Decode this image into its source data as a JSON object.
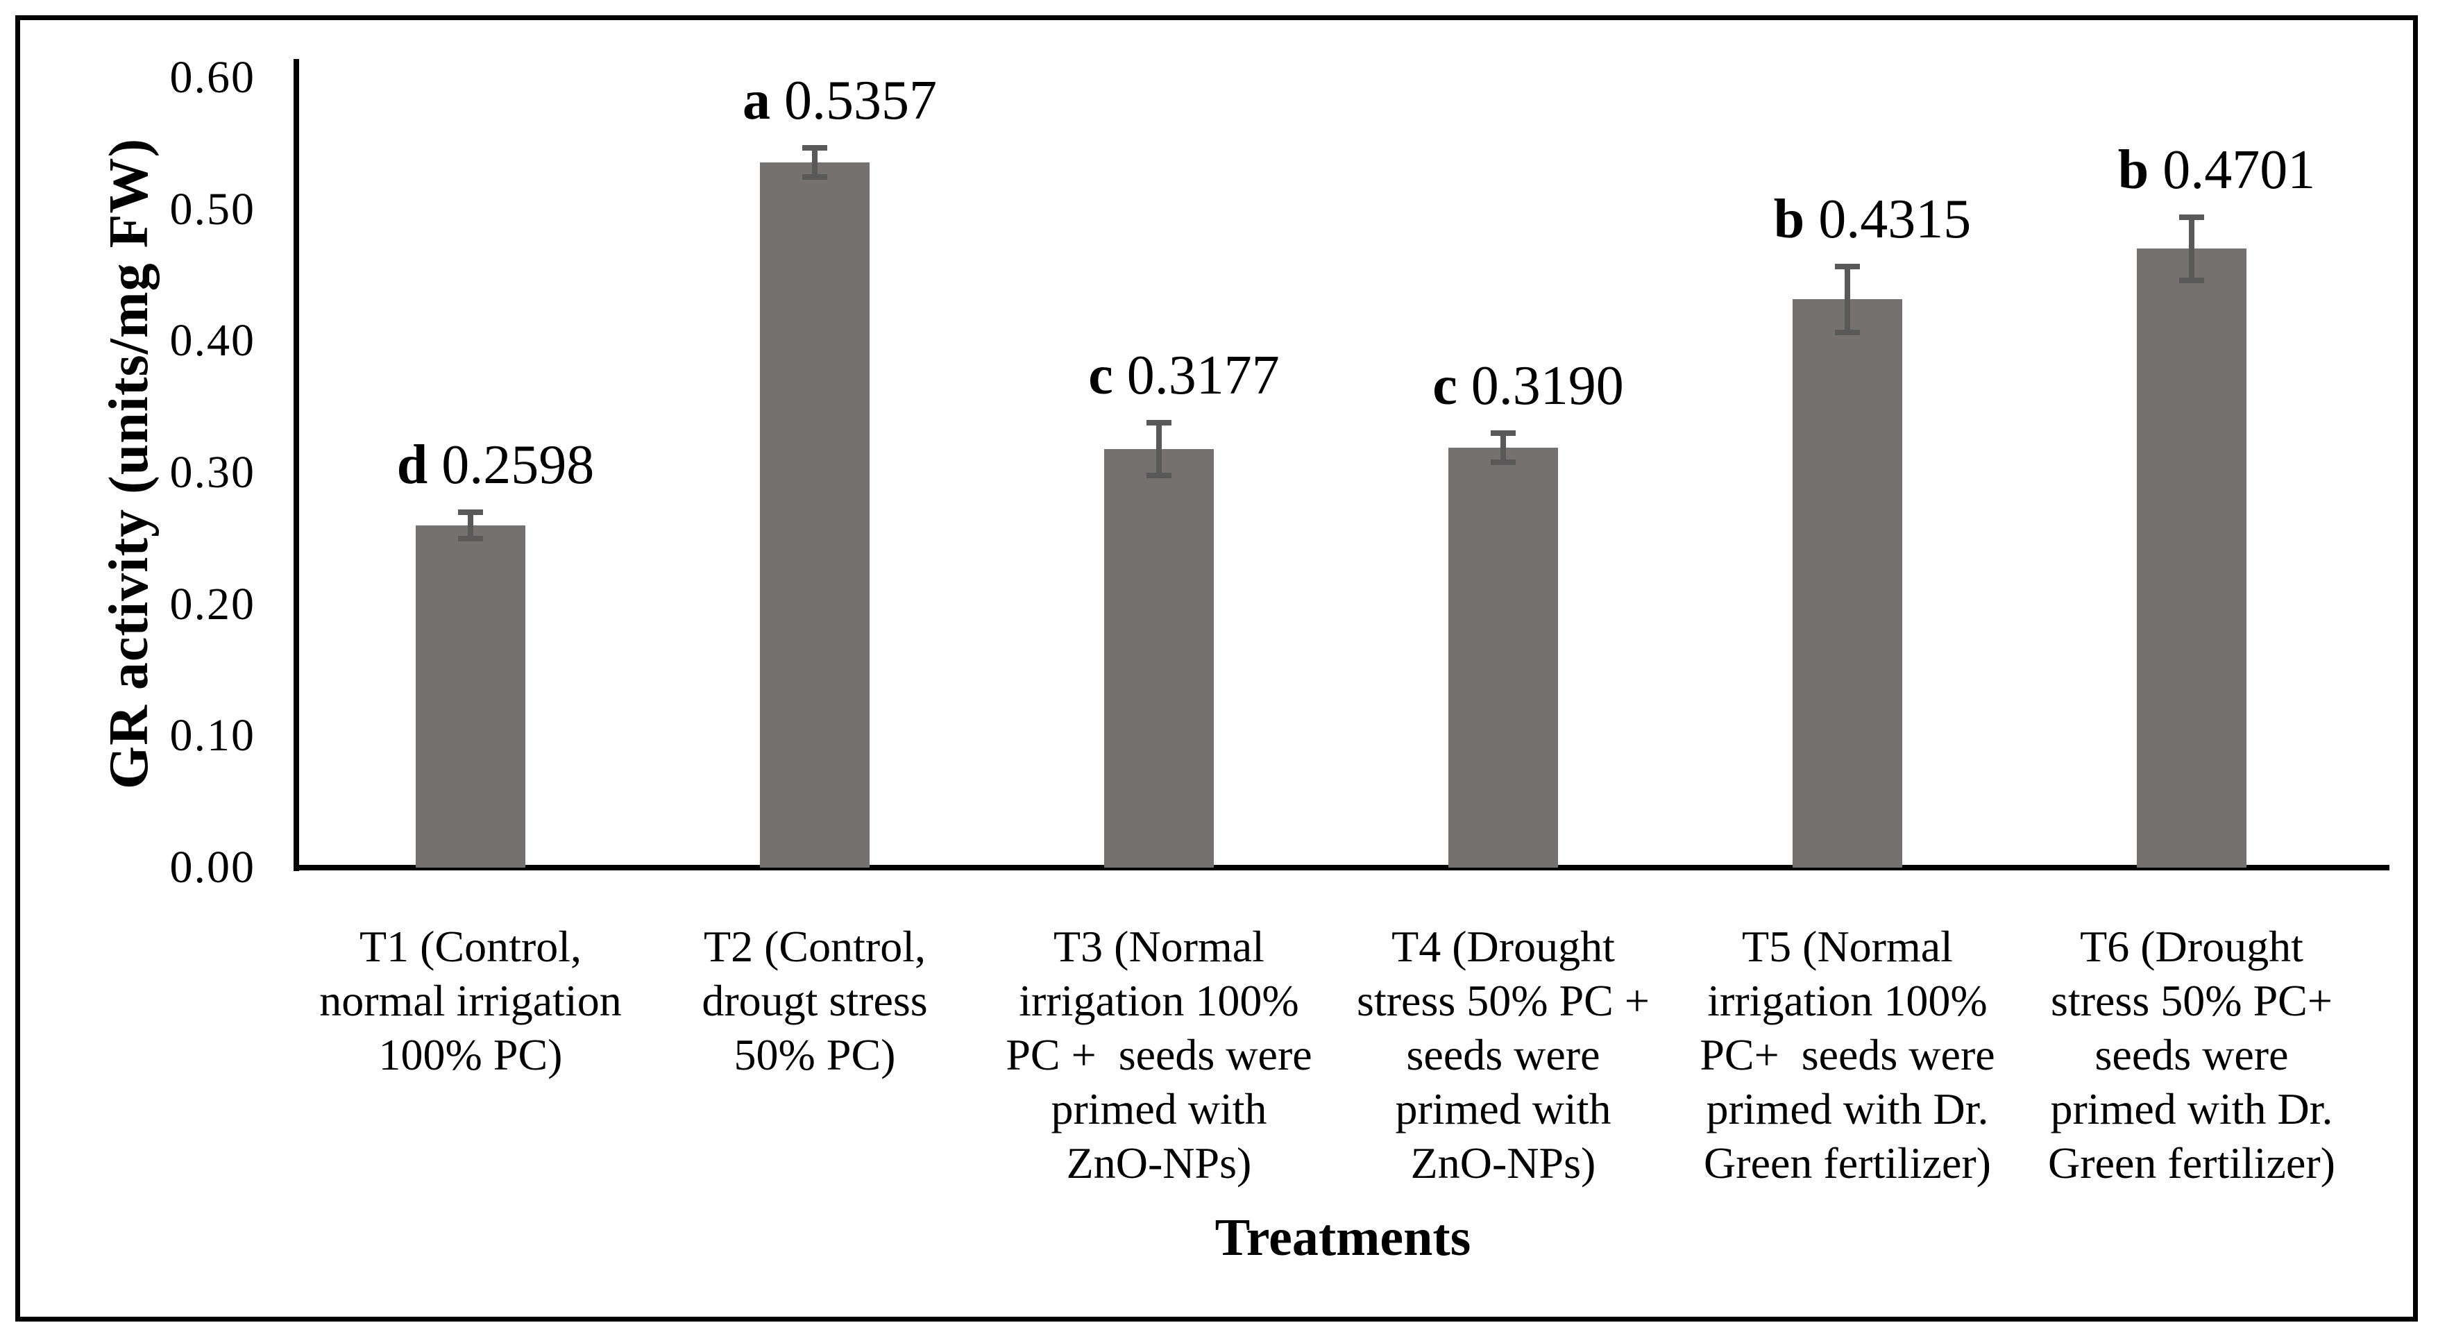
{
  "chart_data": {
    "type": "bar",
    "title": "",
    "xlabel": "Treatments",
    "ylabel": "GR activity (units/mg FW)",
    "ylim": [
      0,
      0.6
    ],
    "grid": false,
    "legend": false,
    "bar_color": "#767171",
    "error_bar_color": "#595959",
    "axis_color": "#000000",
    "yticks": [
      {
        "value": 0.0,
        "label": "0.00"
      },
      {
        "value": 0.1,
        "label": "0.10"
      },
      {
        "value": 0.2,
        "label": "0.20"
      },
      {
        "value": 0.3,
        "label": "0.30"
      },
      {
        "value": 0.4,
        "label": "0.40"
      },
      {
        "value": 0.5,
        "label": "0.50"
      },
      {
        "value": 0.6,
        "label": "0.60"
      }
    ],
    "categories": [
      "T1 (Control, normal irrigation 100% PC)",
      "T2 (Control, drougt stress 50% PC)",
      "T3 (Normal irrigation 100% PC +  seeds were primed with ZnO-NPs)",
      "T4 (Drought stress 50% PC + seeds were primed with ZnO-NPs)",
      "T5 (Normal irrigation 100% PC+  seeds were primed with Dr. Green fertilizer)",
      "T6 (Drought stress 50% PC+ seeds were primed with Dr. Green fertilizer)"
    ],
    "bars": [
      {
        "sig_letter": "d",
        "value": 0.2598,
        "value_label": "0.2598",
        "error": 0.01,
        "category_lines": [
          "T1 (Control,",
          "normal irrigation",
          "100% PC)"
        ]
      },
      {
        "sig_letter": "a",
        "value": 0.5357,
        "value_label": "0.5357",
        "error": 0.011,
        "category_lines": [
          "T2 (Control,",
          "drougt stress",
          "50% PC)"
        ]
      },
      {
        "sig_letter": "c",
        "value": 0.3177,
        "value_label": "0.3177",
        "error": 0.02,
        "category_lines": [
          "T3 (Normal",
          "irrigation 100%",
          "PC +  seeds were",
          "primed with",
          "ZnO-NPs)"
        ]
      },
      {
        "sig_letter": "c",
        "value": 0.319,
        "value_label": "0.3190",
        "error": 0.011,
        "category_lines": [
          "T4 (Drought",
          "stress 50% PC +",
          "seeds were",
          "primed with",
          "ZnO-NPs)"
        ]
      },
      {
        "sig_letter": "b",
        "value": 0.4315,
        "value_label": "0.4315",
        "error": 0.025,
        "category_lines": [
          "T5 (Normal",
          "irrigation 100%",
          "PC+  seeds were",
          "primed with Dr.",
          "Green fertilizer)"
        ]
      },
      {
        "sig_letter": "b",
        "value": 0.4701,
        "value_label": "0.4701",
        "error": 0.024,
        "category_lines": [
          "T6 (Drought",
          "stress 50% PC+",
          "seeds were",
          "primed with Dr.",
          "Green fertilizer)"
        ]
      }
    ]
  }
}
